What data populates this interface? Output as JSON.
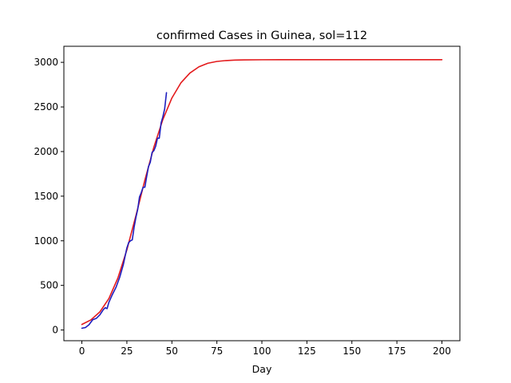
{
  "chart_data": {
    "type": "line",
    "title": "confirmed Cases in Guinea, sol=112",
    "xlabel": "Day",
    "ylabel": "",
    "xlim": [
      -10,
      210
    ],
    "ylim": [
      -120,
      3180
    ],
    "x_ticks": [
      0,
      25,
      50,
      75,
      100,
      125,
      150,
      175,
      200
    ],
    "y_ticks": [
      0,
      500,
      1000,
      1500,
      2000,
      2500,
      3000
    ],
    "grid": false,
    "legend": "none",
    "series": [
      {
        "color": "#e31a1c",
        "style": "fitted-logistic",
        "x": [
          0,
          5,
          10,
          15,
          20,
          25,
          30,
          35,
          40,
          45,
          50,
          55,
          60,
          65,
          70,
          75,
          80,
          85,
          90,
          100,
          110,
          125,
          150,
          175,
          200
        ],
        "y": [
          62,
          113,
          203,
          352,
          582,
          898,
          1280,
          1680,
          2050,
          2360,
          2600,
          2770,
          2880,
          2950,
          2990,
          3010,
          3020,
          3025,
          3027,
          3029,
          3030,
          3030,
          3030,
          3030,
          3030
        ]
      },
      {
        "color": "#1f1fbf",
        "style": "observed",
        "x": [
          0,
          2,
          4,
          6,
          8,
          10,
          12,
          13,
          14,
          15,
          17,
          19,
          21,
          23,
          25,
          26,
          27,
          28,
          29,
          30,
          31,
          32,
          33,
          34,
          35,
          36,
          37,
          38,
          39,
          40,
          41,
          42,
          43,
          44,
          45,
          46,
          47
        ],
        "y": [
          20,
          28,
          60,
          115,
          130,
          170,
          230,
          250,
          240,
          310,
          400,
          480,
          590,
          730,
          920,
          980,
          1000,
          1010,
          1150,
          1260,
          1350,
          1490,
          1540,
          1600,
          1600,
          1720,
          1830,
          1880,
          1990,
          2010,
          2060,
          2150,
          2150,
          2320,
          2390,
          2480,
          2660
        ]
      }
    ]
  }
}
